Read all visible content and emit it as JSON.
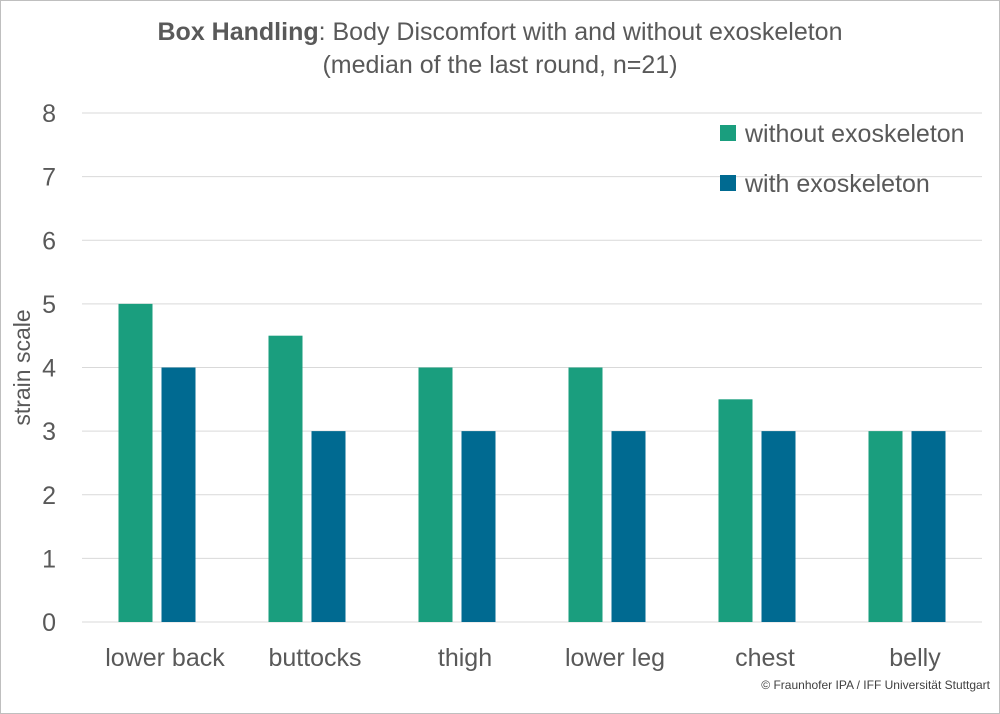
{
  "title": {
    "bold": "Box Handling",
    "rest": ": Body Discomfort with and without exoskeleton",
    "line2": "(median of the last round, n=21)"
  },
  "copyright": "© Fraunhofer IPA / IFF Universität Stuttgart",
  "colors": {
    "without": "#1a9e7e",
    "with": "#006a91",
    "grid": "#d9d9d9",
    "text": "#595959"
  },
  "chart_data": {
    "type": "bar",
    "categories": [
      "lower back",
      "buttocks",
      "thigh",
      "lower leg",
      "chest",
      "belly"
    ],
    "series": [
      {
        "name": "without exoskeleton",
        "values": [
          5,
          4.5,
          4,
          4,
          3.5,
          3
        ]
      },
      {
        "name": "with exoskeleton",
        "values": [
          4,
          3,
          3,
          3,
          3,
          3
        ]
      }
    ],
    "ylabel": "strain scale",
    "xlabel": "",
    "ylim": [
      0,
      8
    ],
    "yticks": [
      0,
      1,
      2,
      3,
      4,
      5,
      6,
      7,
      8
    ],
    "grid": true,
    "legend_position": "top-right"
  }
}
